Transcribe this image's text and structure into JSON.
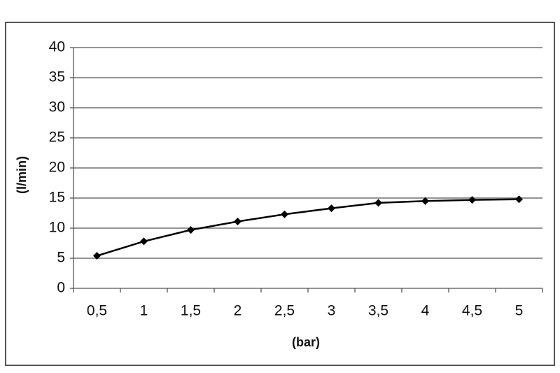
{
  "chart_data": {
    "type": "line",
    "x_label": "(bar)",
    "y_label": "(l/min)",
    "categories": [
      "0,5",
      "1",
      "1,5",
      "2",
      "2,5",
      "3",
      "3,5",
      "4",
      "4,5",
      "5"
    ],
    "series": [
      {
        "color": "#000000",
        "values": [
          5.4,
          7.8,
          9.7,
          11.1,
          12.3,
          13.3,
          14.2,
          14.5,
          14.7,
          14.8
        ]
      }
    ],
    "ylim": [
      0,
      40
    ],
    "yticks": [
      0,
      5,
      10,
      15,
      20,
      25,
      30,
      35,
      40
    ],
    "grid": true
  }
}
